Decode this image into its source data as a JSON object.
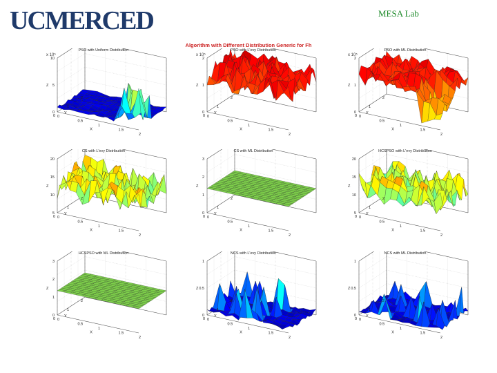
{
  "header": {
    "logo_text": "UCMERCED",
    "lab_label": "MESA Lab"
  },
  "figure": {
    "title": "Algorithm with Different Distribution Generic for Fh"
  },
  "colors": {
    "logo": "#1f3a6a",
    "lab": "#1d8a2a",
    "title": "#cc2222"
  },
  "plots": [
    {
      "title": "PSO with Uniform Distribution",
      "exponent": "x 10⁵",
      "z_ticks": [
        "10",
        "5",
        "0"
      ],
      "style": "flat_peak_right",
      "palette": "blue_to_red"
    },
    {
      "title": "PSO with L'evy Distribution",
      "exponent": "x 10⁵",
      "z_ticks": [
        "2",
        "1",
        "0"
      ],
      "style": "high_rough",
      "palette": "red_orange"
    },
    {
      "title": "PSO with ML Distribution",
      "exponent": "x 10⁵",
      "z_ticks": [
        "2",
        "1",
        "0"
      ],
      "style": "high_drop_right",
      "palette": "red_orange"
    },
    {
      "title": "CS with L'evy Distribution",
      "exponent": "",
      "z_ticks": [
        "20",
        "15",
        "10",
        "5"
      ],
      "style": "mid_rough",
      "palette": "cyan_mixed"
    },
    {
      "title": "CS with ML Distribution",
      "exponent": "",
      "z_ticks": [
        "3",
        "2",
        "1",
        "0"
      ],
      "style": "flat_green",
      "palette": "green"
    },
    {
      "title": "HCSPSO with L'evy Distribution",
      "exponent": "",
      "z_ticks": [
        "20",
        "15",
        "10",
        "5"
      ],
      "style": "mid_rough",
      "palette": "cyan_mixed"
    },
    {
      "title": "HCSPSO with ML Distribution",
      "exponent": "",
      "z_ticks": [
        "3",
        "2",
        "1",
        "0"
      ],
      "style": "flat_green",
      "palette": "green"
    },
    {
      "title": "NCS with L'evy Distribution",
      "exponent": "",
      "z_ticks": [
        "1",
        "0.5",
        "0"
      ],
      "style": "low_spiky",
      "palette": "blue_to_red"
    },
    {
      "title": "NCS with ML Distribution",
      "exponent": "",
      "z_ticks": [
        "1",
        "0.5",
        "0"
      ],
      "style": "low_spiky",
      "palette": "blue_to_red"
    }
  ],
  "axes": {
    "x_label": "X",
    "y_label": "Y",
    "z_label": "Z",
    "x_ticks": [
      "0",
      "0.5",
      "1",
      "1.5",
      "2"
    ],
    "y_ticks": [
      "0",
      "1",
      "2"
    ]
  }
}
